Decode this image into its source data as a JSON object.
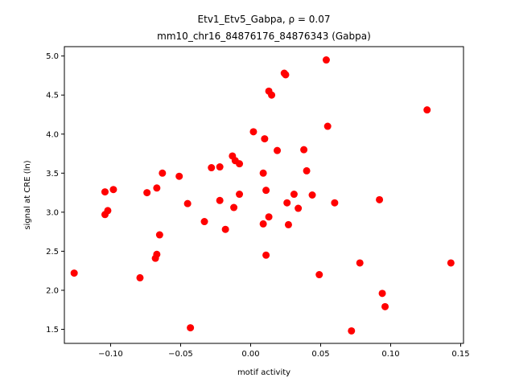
{
  "chart_data": {
    "type": "scatter",
    "title_line1": "Etv1_Etv5_Gabpa, ρ = 0.07",
    "title_line2": "mm10_chr16_84876176_84876343 (Gabpa)",
    "xlabel": "motif activity",
    "ylabel": "signal at CRE (ln)",
    "xlim": [
      -0.133,
      0.152
    ],
    "ylim": [
      1.32,
      5.12
    ],
    "xticks": [
      -0.1,
      -0.05,
      0.0,
      0.05,
      0.1,
      0.15
    ],
    "xtick_labels": [
      "−0.10",
      "−0.05",
      "0.00",
      "0.05",
      "0.10",
      "0.15"
    ],
    "yticks": [
      1.5,
      2.0,
      2.5,
      3.0,
      3.5,
      4.0,
      4.5,
      5.0
    ],
    "ytick_labels": [
      "1.5",
      "2.0",
      "2.5",
      "3.0",
      "3.5",
      "4.0",
      "4.5",
      "5.0"
    ],
    "grid": false,
    "marker_color": "#ff0000",
    "points": [
      {
        "x": -0.126,
        "y": 2.22
      },
      {
        "x": -0.104,
        "y": 3.26
      },
      {
        "x": -0.104,
        "y": 2.97
      },
      {
        "x": -0.102,
        "y": 3.02
      },
      {
        "x": -0.098,
        "y": 3.29
      },
      {
        "x": -0.079,
        "y": 2.16
      },
      {
        "x": -0.074,
        "y": 3.25
      },
      {
        "x": -0.068,
        "y": 2.41
      },
      {
        "x": -0.067,
        "y": 2.46
      },
      {
        "x": -0.067,
        "y": 3.31
      },
      {
        "x": -0.065,
        "y": 2.71
      },
      {
        "x": -0.063,
        "y": 3.5
      },
      {
        "x": -0.051,
        "y": 3.46
      },
      {
        "x": -0.045,
        "y": 3.11
      },
      {
        "x": -0.043,
        "y": 1.52
      },
      {
        "x": -0.033,
        "y": 2.88
      },
      {
        "x": -0.028,
        "y": 3.57
      },
      {
        "x": -0.022,
        "y": 3.15
      },
      {
        "x": -0.022,
        "y": 3.58
      },
      {
        "x": -0.018,
        "y": 2.78
      },
      {
        "x": -0.013,
        "y": 3.72
      },
      {
        "x": -0.012,
        "y": 3.06
      },
      {
        "x": -0.011,
        "y": 3.66
      },
      {
        "x": -0.008,
        "y": 3.62
      },
      {
        "x": -0.008,
        "y": 3.23
      },
      {
        "x": 0.002,
        "y": 4.03
      },
      {
        "x": 0.009,
        "y": 3.5
      },
      {
        "x": 0.009,
        "y": 2.85
      },
      {
        "x": 0.01,
        "y": 3.94
      },
      {
        "x": 0.011,
        "y": 3.28
      },
      {
        "x": 0.011,
        "y": 2.45
      },
      {
        "x": 0.013,
        "y": 2.94
      },
      {
        "x": 0.013,
        "y": 4.55
      },
      {
        "x": 0.015,
        "y": 4.5
      },
      {
        "x": 0.019,
        "y": 3.79
      },
      {
        "x": 0.024,
        "y": 4.78
      },
      {
        "x": 0.025,
        "y": 4.76
      },
      {
        "x": 0.026,
        "y": 3.12
      },
      {
        "x": 0.027,
        "y": 2.84
      },
      {
        "x": 0.031,
        "y": 3.23
      },
      {
        "x": 0.034,
        "y": 3.05
      },
      {
        "x": 0.038,
        "y": 3.8
      },
      {
        "x": 0.04,
        "y": 3.53
      },
      {
        "x": 0.044,
        "y": 3.22
      },
      {
        "x": 0.049,
        "y": 2.2
      },
      {
        "x": 0.054,
        "y": 4.95
      },
      {
        "x": 0.055,
        "y": 4.1
      },
      {
        "x": 0.06,
        "y": 3.12
      },
      {
        "x": 0.072,
        "y": 1.48
      },
      {
        "x": 0.078,
        "y": 2.35
      },
      {
        "x": 0.092,
        "y": 3.16
      },
      {
        "x": 0.094,
        "y": 1.96
      },
      {
        "x": 0.096,
        "y": 1.79
      },
      {
        "x": 0.126,
        "y": 4.31
      },
      {
        "x": 0.143,
        "y": 2.35
      }
    ]
  }
}
